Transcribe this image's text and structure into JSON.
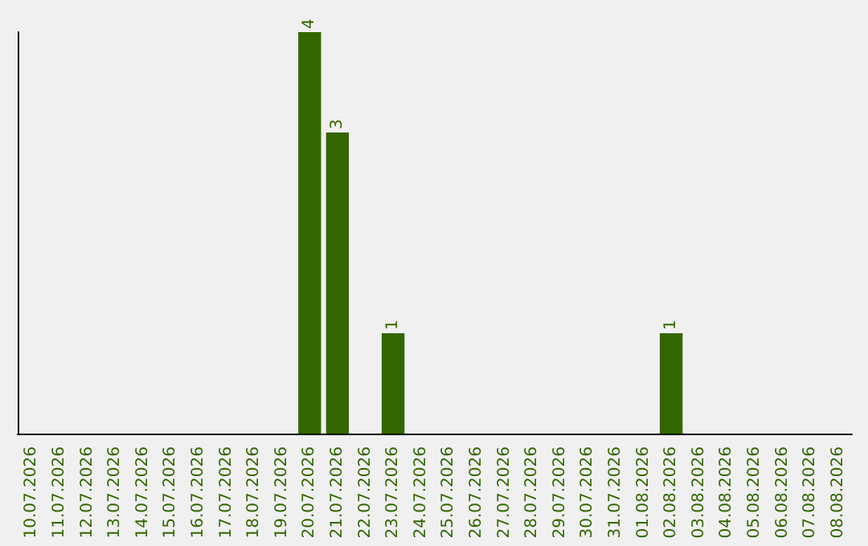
{
  "chart_data": {
    "type": "bar",
    "categories": [
      "10.07.2026",
      "11.07.2026",
      "12.07.2026",
      "13.07.2026",
      "14.07.2026",
      "15.07.2026",
      "16.07.2026",
      "17.07.2026",
      "18.07.2026",
      "19.07.2026",
      "20.07.2026",
      "21.07.2026",
      "22.07.2026",
      "23.07.2026",
      "24.07.2026",
      "25.07.2026",
      "26.07.2026",
      "27.07.2026",
      "28.07.2026",
      "29.07.2026",
      "30.07.2026",
      "31.07.2026",
      "01.08.2026",
      "02.08.2026",
      "03.08.2026",
      "04.08.2026",
      "05.08.2026",
      "06.08.2026",
      "07.08.2026",
      "08.08.2026"
    ],
    "values": [
      0,
      0,
      0,
      0,
      0,
      0,
      0,
      0,
      0,
      0,
      4,
      3,
      0,
      1,
      0,
      0,
      0,
      0,
      0,
      0,
      0,
      0,
      0,
      1,
      0,
      0,
      0,
      0,
      0,
      0
    ],
    "value_labels": [
      null,
      null,
      null,
      null,
      null,
      null,
      null,
      null,
      null,
      null,
      "4",
      "3",
      null,
      "1",
      null,
      null,
      null,
      null,
      null,
      null,
      null,
      null,
      null,
      "1",
      null,
      null,
      null,
      null,
      null,
      null
    ],
    "color": "#336600",
    "tick_labels": "x"
  }
}
